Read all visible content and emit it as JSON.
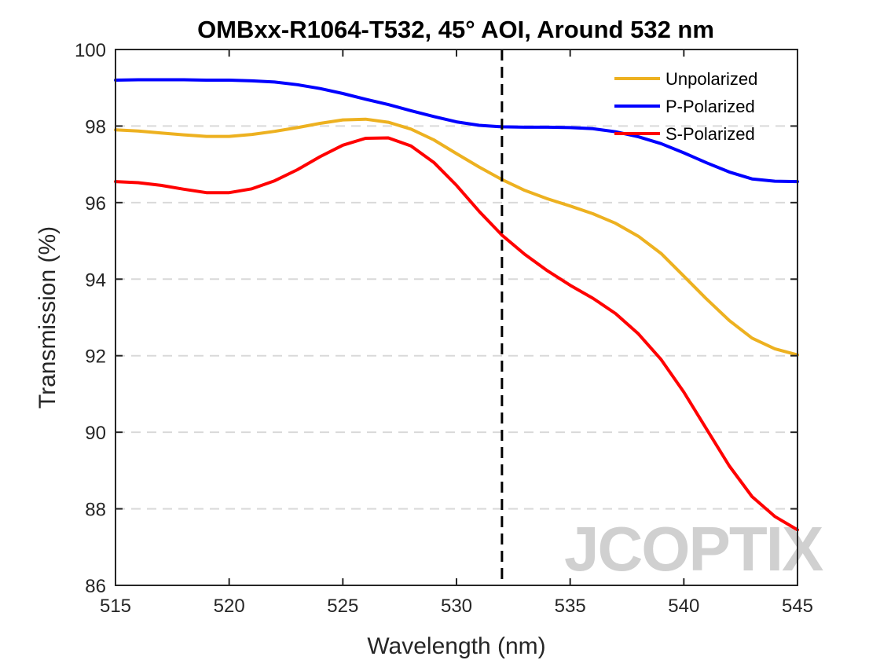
{
  "chart_data": {
    "type": "line",
    "title": "OMBxx-R1064-T532, 45° AOI, Around 532 nm",
    "xlabel": "Wavelength (nm)",
    "ylabel": "Transmission (%)",
    "xlim": [
      515,
      545
    ],
    "ylim": [
      86,
      100
    ],
    "xticks": [
      515,
      520,
      525,
      530,
      535,
      540,
      545
    ],
    "yticks": [
      86,
      88,
      90,
      92,
      94,
      96,
      98,
      100
    ],
    "grid": "horizontal dashed",
    "legend_position": "top-right",
    "reference_line": {
      "x": 532,
      "style": "dashed",
      "color": "#000000"
    },
    "watermark": "JCOPTIX",
    "series": [
      {
        "name": "Unpolarized",
        "color": "#EDB120",
        "x": [
          515,
          516,
          517,
          518,
          519,
          520,
          521,
          522,
          523,
          524,
          525,
          526,
          527,
          528,
          529,
          530,
          531,
          532,
          533,
          534,
          535,
          536,
          537,
          538,
          539,
          540,
          541,
          542,
          543,
          544,
          545
        ],
        "y": [
          97.9,
          97.87,
          97.82,
          97.77,
          97.73,
          97.73,
          97.78,
          97.86,
          97.96,
          98.07,
          98.16,
          98.18,
          98.1,
          97.92,
          97.64,
          97.28,
          96.93,
          96.6,
          96.32,
          96.1,
          95.91,
          95.71,
          95.46,
          95.12,
          94.67,
          94.08,
          93.48,
          92.92,
          92.46,
          92.18,
          92.02
        ]
      },
      {
        "name": "P-Polarized",
        "color": "#0000FF",
        "x": [
          515,
          516,
          517,
          518,
          519,
          520,
          521,
          522,
          523,
          524,
          525,
          526,
          527,
          528,
          529,
          530,
          531,
          532,
          533,
          534,
          535,
          536,
          537,
          538,
          539,
          540,
          541,
          542,
          543,
          544,
          545
        ],
        "y": [
          99.2,
          99.21,
          99.21,
          99.21,
          99.2,
          99.2,
          99.18,
          99.15,
          99.08,
          98.98,
          98.85,
          98.7,
          98.56,
          98.4,
          98.25,
          98.11,
          98.02,
          97.98,
          97.97,
          97.97,
          97.96,
          97.93,
          97.85,
          97.72,
          97.54,
          97.3,
          97.04,
          96.8,
          96.62,
          96.56,
          96.55
        ]
      },
      {
        "name": "S-Polarized",
        "color": "#FF0000",
        "x": [
          515,
          516,
          517,
          518,
          519,
          520,
          521,
          522,
          523,
          524,
          525,
          526,
          527,
          528,
          529,
          530,
          531,
          532,
          533,
          534,
          535,
          536,
          537,
          538,
          539,
          540,
          541,
          542,
          543,
          544,
          545
        ],
        "y": [
          96.55,
          96.52,
          96.45,
          96.35,
          96.26,
          96.26,
          96.36,
          96.57,
          96.86,
          97.2,
          97.5,
          97.68,
          97.69,
          97.48,
          97.05,
          96.45,
          95.77,
          95.15,
          94.65,
          94.22,
          93.84,
          93.5,
          93.1,
          92.57,
          91.9,
          91.05,
          90.08,
          89.12,
          88.32,
          87.8,
          87.45
        ]
      }
    ]
  }
}
